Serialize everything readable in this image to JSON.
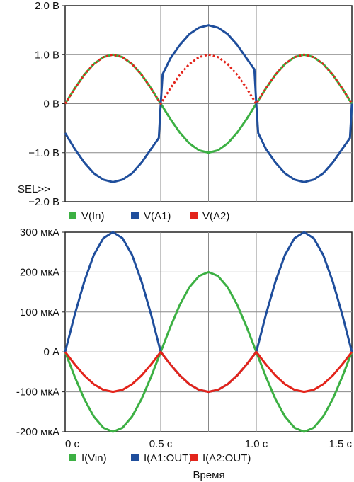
{
  "chart_data": [
    {
      "type": "line",
      "xlim": [
        0,
        1.5
      ],
      "ylim": [
        -2.0,
        2.0
      ],
      "grid": true,
      "yticks": [
        {
          "value": 2.0,
          "label": "2.0 В"
        },
        {
          "value": 1.0,
          "label": "1.0 В"
        },
        {
          "value": 0,
          "label": "0 В"
        },
        {
          "value": -1.0,
          "label": "−1.0 В"
        },
        {
          "value": -2.0,
          "label": "−2.0 В"
        }
      ],
      "corner_label": "SEL>>",
      "x": [
        0,
        0.05,
        0.1,
        0.15,
        0.2,
        0.25,
        0.3,
        0.35,
        0.4,
        0.45,
        0.49,
        0.5,
        0.51,
        0.55,
        0.6,
        0.65,
        0.7,
        0.75,
        0.8,
        0.85,
        0.9,
        0.95,
        0.99,
        1.0,
        1.01,
        1.05,
        1.1,
        1.15,
        1.2,
        1.25,
        1.3,
        1.35,
        1.4,
        1.45,
        1.49,
        1.5
      ],
      "series": [
        {
          "name": "V(In)",
          "color": "#3cb043",
          "dash": false,
          "values": [
            0,
            0.31,
            0.59,
            0.81,
            0.95,
            1.0,
            0.95,
            0.81,
            0.59,
            0.31,
            0.06,
            0,
            -0.06,
            -0.31,
            -0.59,
            -0.81,
            -0.95,
            -1.0,
            -0.95,
            -0.81,
            -0.59,
            -0.31,
            -0.06,
            0,
            0.06,
            0.31,
            0.59,
            0.81,
            0.95,
            1.0,
            0.95,
            0.81,
            0.59,
            0.31,
            0.06,
            0
          ]
        },
        {
          "name": "V(A1)",
          "color": "#1f4e9c",
          "dash": false,
          "values": [
            -0.6,
            -0.92,
            -1.2,
            -1.42,
            -1.55,
            -1.6,
            -1.55,
            -1.42,
            -1.2,
            -0.92,
            -0.7,
            0,
            0.6,
            0.92,
            1.2,
            1.42,
            1.55,
            1.6,
            1.55,
            1.42,
            1.2,
            0.92,
            0.7,
            0,
            -0.6,
            -0.92,
            -1.2,
            -1.42,
            -1.55,
            -1.6,
            -1.55,
            -1.42,
            -1.2,
            -0.92,
            -0.7,
            0
          ]
        },
        {
          "name": "V(A2)",
          "color": "#e3241b",
          "dash": true,
          "values": [
            0,
            0.31,
            0.59,
            0.81,
            0.95,
            1.0,
            0.95,
            0.81,
            0.59,
            0.31,
            0.06,
            0,
            0.06,
            0.31,
            0.59,
            0.81,
            0.95,
            1.0,
            0.95,
            0.81,
            0.59,
            0.31,
            0.06,
            0,
            0.06,
            0.31,
            0.59,
            0.81,
            0.95,
            1.0,
            0.95,
            0.81,
            0.59,
            0.31,
            0.06,
            0
          ]
        }
      ]
    },
    {
      "type": "line",
      "xlim": [
        0,
        1.5
      ],
      "ylim": [
        -200,
        300
      ],
      "grid": true,
      "xlabel": "Время",
      "xticks": [
        {
          "value": 0,
          "label": "0 с"
        },
        {
          "value": 0.5,
          "label": "0.5 с"
        },
        {
          "value": 1.0,
          "label": "1.0 с"
        },
        {
          "value": 1.5,
          "label": "1.5 с"
        }
      ],
      "yticks": [
        {
          "value": 300,
          "label": "300 мкА"
        },
        {
          "value": 200,
          "label": "200 мкА"
        },
        {
          "value": 100,
          "label": "100 мкА"
        },
        {
          "value": 0,
          "label": "0 А"
        },
        {
          "value": -100,
          "label": "-100 мкА"
        },
        {
          "value": -200,
          "label": "-200 мкА"
        }
      ],
      "x": [
        0,
        0.05,
        0.1,
        0.15,
        0.2,
        0.25,
        0.3,
        0.35,
        0.4,
        0.45,
        0.5,
        0.55,
        0.6,
        0.65,
        0.7,
        0.75,
        0.8,
        0.85,
        0.9,
        0.95,
        1.0,
        1.05,
        1.1,
        1.15,
        1.2,
        1.25,
        1.3,
        1.35,
        1.4,
        1.45,
        1.5
      ],
      "series": [
        {
          "name": "I(Vin)",
          "color": "#3cb043",
          "dash": false,
          "values": [
            0,
            -62,
            -118,
            -162,
            -190,
            -200,
            -190,
            -162,
            -118,
            -62,
            0,
            62,
            118,
            162,
            190,
            200,
            190,
            162,
            118,
            62,
            0,
            -62,
            -118,
            -162,
            -190,
            -200,
            -190,
            -162,
            -118,
            -62,
            0
          ]
        },
        {
          "name": "I(A1:OUT)",
          "color": "#1f4e9c",
          "dash": false,
          "values": [
            0,
            93,
            176,
            243,
            285,
            300,
            285,
            243,
            176,
            93,
            0,
            -31,
            -59,
            -81,
            -95,
            -100,
            -95,
            -81,
            -59,
            -31,
            0,
            93,
            176,
            243,
            285,
            300,
            285,
            243,
            176,
            93,
            0
          ]
        },
        {
          "name": "I(A2:OUT)",
          "color": "#e3241b",
          "dash": false,
          "values": [
            0,
            -31,
            -59,
            -81,
            -95,
            -100,
            -95,
            -81,
            -59,
            -31,
            0,
            -31,
            -59,
            -81,
            -95,
            -100,
            -95,
            -81,
            -59,
            -31,
            0,
            -31,
            -59,
            -81,
            -95,
            -100,
            -95,
            -81,
            -59,
            -31,
            0
          ]
        }
      ]
    }
  ]
}
